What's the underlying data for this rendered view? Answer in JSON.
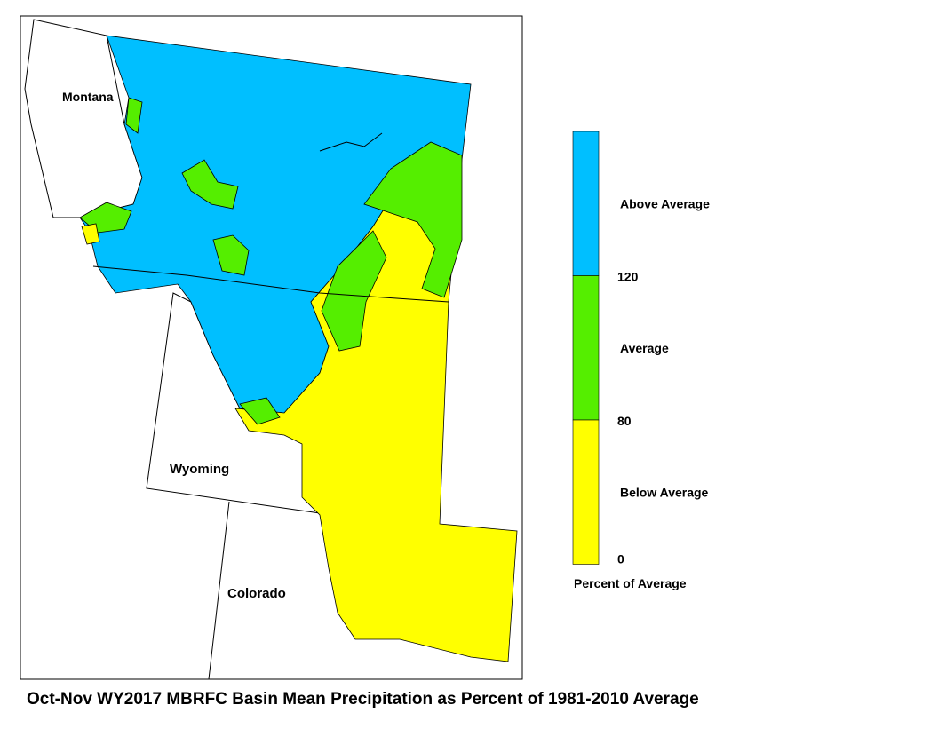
{
  "title": "Oct-Nov WY2017 MBRFC Basin Mean Precipitation as Percent of 1981-2010 Average",
  "map": {
    "states": [
      {
        "label": "Montana"
      },
      {
        "label": "Wyoming"
      },
      {
        "label": "Colorado"
      }
    ]
  },
  "legend": {
    "title": "Percent of Average",
    "classes": [
      {
        "label": "Above Average",
        "color": "#00bfff"
      },
      {
        "label": "Average",
        "color": "#55ee00"
      },
      {
        "label": "Below Average",
        "color": "#ffff00"
      }
    ],
    "ticks": [
      120,
      80,
      0
    ]
  }
}
